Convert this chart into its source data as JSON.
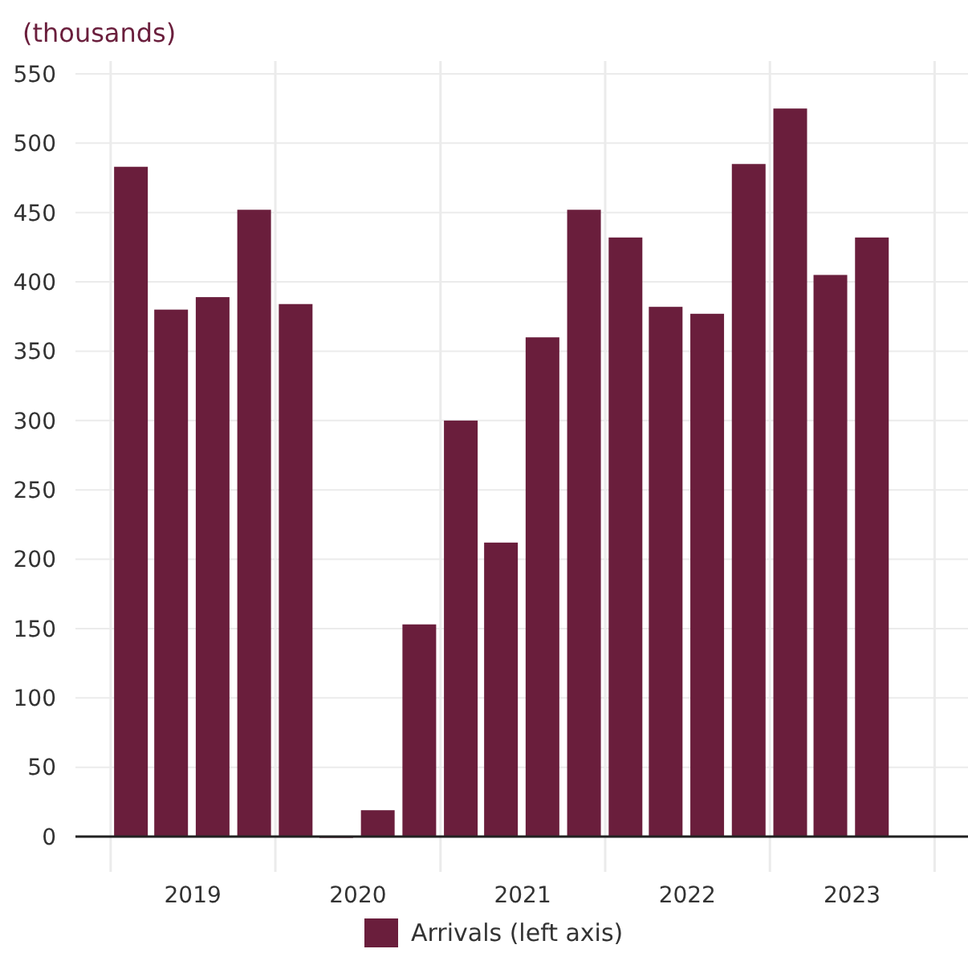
{
  "chart_data": {
    "type": "bar",
    "ylabel": "(thousands)",
    "x": [
      "2019-02-15",
      "2019-05-15",
      "2019-08-15",
      "2019-11-15",
      "2020-02-15",
      "2020-05-15",
      "2020-08-15",
      "2020-11-15",
      "2021-02-15",
      "2021-05-15",
      "2021-08-15",
      "2021-11-15",
      "2022-02-15",
      "2022-05-15",
      "2022-08-15",
      "2022-11-15",
      "2023-02-15",
      "2023-05-15",
      "2023-08-15"
    ],
    "series": [
      {
        "name": "Arrivals (left axis)",
        "color": "#6a1e3c",
        "values": [
          483,
          380,
          389,
          452,
          384,
          0,
          19,
          153,
          300,
          212,
          360,
          452,
          432,
          382,
          377,
          485,
          525,
          405,
          432
        ]
      }
    ],
    "xlim": [
      "2018-10-15",
      "2024-03-15"
    ],
    "xticks": [
      {
        "value": "2019-01-01",
        "label": null
      },
      {
        "value": "2019-07-02",
        "label": "2019"
      },
      {
        "value": "2020-01-01",
        "label": null
      },
      {
        "value": "2020-07-02",
        "label": "2020"
      },
      {
        "value": "2021-01-01",
        "label": null
      },
      {
        "value": "2021-07-02",
        "label": "2021"
      },
      {
        "value": "2022-01-01",
        "label": null
      },
      {
        "value": "2022-07-02",
        "label": "2022"
      },
      {
        "value": "2023-01-01",
        "label": null
      },
      {
        "value": "2023-07-02",
        "label": "2023"
      },
      {
        "value": "2024-01-01",
        "label": null
      }
    ],
    "ylim": [
      0,
      550
    ],
    "yticks": [
      0,
      50,
      100,
      150,
      200,
      250,
      300,
      350,
      400,
      450,
      500,
      550
    ],
    "grid": true,
    "legend": "bottom"
  }
}
